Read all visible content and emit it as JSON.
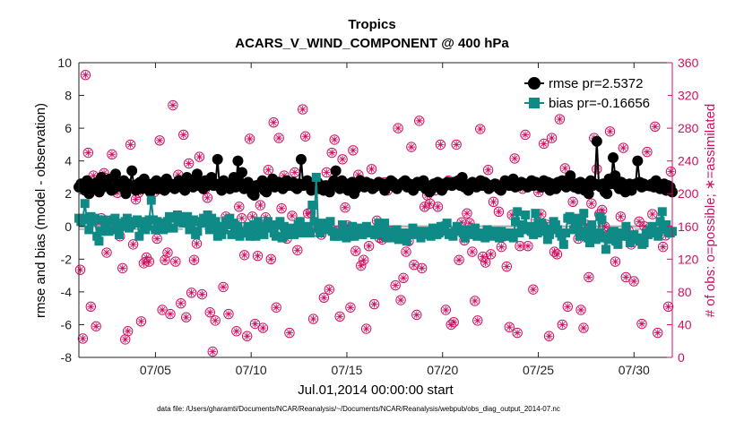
{
  "chart_data": {
    "type": "line",
    "title": "Tropics",
    "subtitle": "ACARS_V_WIND_COMPONENT @ 400 hPa",
    "xlabel": "Jul.01,2014 00:00:00 start",
    "ylabel": "rmse and bias (model - observation)",
    "y2label": "# of obs: o=possible; ∗=assimilated",
    "footnote": "data file: /Users/gharamti/Documents/NCAR/Reanalysis/~/Documents/NCAR/Reanalysis/webpub/obs_diag_output_2014-07.nc",
    "xlim": [
      1.0,
      32.0
    ],
    "ylim": [
      -8,
      10
    ],
    "y2lim": [
      0,
      360
    ],
    "xticks": [
      5,
      10,
      15,
      20,
      25,
      30
    ],
    "xticklabels": [
      "07/05",
      "07/10",
      "07/15",
      "07/20",
      "07/25",
      "07/30"
    ],
    "yticks": [
      -8,
      -6,
      -4,
      -2,
      0,
      2,
      4,
      6,
      8,
      10
    ],
    "y2ticks": [
      0,
      40,
      80,
      120,
      160,
      200,
      240,
      280,
      320,
      360
    ],
    "zero_line": 0,
    "mean_bias_line": -0.16656,
    "legend_position": "top-right",
    "colors": {
      "rmse": "#000000",
      "bias": "#0f8a86",
      "obs": "#d01060",
      "zero": "#b4b4b4"
    },
    "series": [
      {
        "name": "rmse pr=2.5372",
        "marker": "circle",
        "values": [
          2.4,
          2.6,
          2.5,
          2.2,
          2.8,
          2.0,
          2.6,
          2.5,
          2.3,
          2.7,
          2.1,
          3.0,
          2.4,
          2.6,
          2.5,
          2.9,
          2.2,
          2.3,
          3.2,
          2.5,
          2.6,
          2.4,
          2.8,
          2.0,
          2.6,
          2.4,
          3.4,
          2.5,
          2.2,
          2.6,
          2.7,
          2.3,
          2.9,
          2.5,
          2.4,
          2.1,
          2.6,
          2.5,
          2.8,
          2.3,
          2.5,
          2.7,
          2.2,
          2.9,
          2.4,
          2.6,
          2.5,
          2.3,
          2.6,
          2.8,
          2.4,
          2.7,
          2.2,
          3.0,
          2.5,
          2.6,
          2.4,
          2.9,
          3.2,
          2.5,
          2.6,
          2.3,
          2.8,
          2.5,
          2.6,
          3.0,
          2.5,
          2.6,
          4.1,
          2.4,
          2.2,
          2.8,
          2.6,
          2.5,
          2.3,
          2.5,
          3.0,
          2.4,
          4.0,
          2.6,
          3.3,
          2.3,
          2.4,
          2.7,
          2.3,
          2.0,
          1.9,
          2.5,
          2.4,
          2.6,
          2.8,
          2.2,
          2.1,
          2.5,
          2.7,
          2.9,
          2.4,
          2.5,
          2.7,
          2.6,
          2.3,
          2.5,
          2.8,
          2.5,
          2.6,
          2.7,
          2.4,
          2.3,
          2.6,
          4.1,
          2.5,
          2.6,
          2.8,
          2.5,
          2.2,
          2.4,
          2.6,
          2.7,
          2.3,
          2.5,
          2.2,
          2.5,
          2.4,
          2.1,
          2.6,
          2.8,
          3.4,
          2.5,
          2.3,
          2.8,
          2.4,
          2.6,
          2.2,
          2.5,
          2.7,
          2.0,
          2.3,
          2.5,
          2.8,
          2.6,
          2.4,
          2.7,
          2.5,
          2.6,
          2.3,
          2.4,
          2.5,
          2.7,
          2.5,
          2.6,
          2.2,
          2.6,
          2.5,
          2.8,
          2.7,
          2.4,
          2.3,
          2.5,
          2.6,
          2.7,
          2.8,
          2.4,
          2.6,
          2.5,
          2.2,
          2.6,
          2.7,
          2.5,
          2.6,
          2.8,
          2.3,
          2.5,
          2.1,
          2.3,
          2.6,
          2.5,
          2.7,
          2.4,
          2.2,
          2.6,
          2.5,
          2.7,
          2.6,
          2.5,
          2.7,
          2.6,
          2.8,
          2.5,
          3.0,
          2.4,
          2.5,
          2.2,
          2.6,
          2.7,
          2.5,
          2.4,
          2.6,
          2.8,
          2.5,
          2.7,
          2.6,
          2.3,
          2.4,
          2.5,
          2.6,
          2.5,
          2.3,
          2.2,
          2.5,
          2.8,
          2.6,
          2.5,
          2.7,
          2.9,
          2.4,
          2.6,
          2.5,
          2.7,
          2.6,
          2.6,
          2.4,
          2.5,
          2.8,
          2.5,
          2.7,
          2.6,
          2.5,
          2.4,
          2.8,
          2.5,
          2.7,
          2.2,
          2.6,
          2.5,
          2.3,
          2.7,
          2.6,
          2.8,
          2.5,
          2.4,
          2.7,
          3.1,
          2.5,
          2.4,
          2.6,
          2.3,
          2.7,
          2.5,
          2.2,
          2.6,
          2.0,
          2.8,
          2.5,
          2.6,
          5.2,
          2.5,
          2.4,
          2.6,
          2.1,
          2.0,
          2.9,
          2.6,
          4.2,
          3.1,
          2.5,
          2.3,
          2.7,
          2.6,
          2.1,
          2.5,
          2.6,
          2.2,
          2.5,
          2.6,
          4.0,
          2.7,
          2.4,
          2.6,
          2.5,
          2.5,
          2.5,
          2.6,
          2.4,
          2.8,
          2.4,
          2.3,
          2.5,
          2.6,
          2.2,
          2.5,
          2.4,
          2.1
        ]
      },
      {
        "name": "bias pr=-0.16656",
        "marker": "square",
        "values": [
          0.5,
          0.3,
          0.5,
          1.4,
          0.4,
          -0.2,
          0.6,
          0.3,
          0.5,
          -0.6,
          -0.9,
          -0.3,
          0.4,
          0.0,
          -0.1,
          -0.3,
          0.3,
          0.4,
          0.5,
          -0.2,
          -0.5,
          0.0,
          0.2,
          0.3,
          0.5,
          -0.1,
          0.1,
          0.3,
          0.2,
          0.4,
          -0.6,
          0.3,
          0.2,
          -0.2,
          0.0,
          0.4,
          1.6,
          0.4,
          -0.2,
          0.3,
          0.2,
          0.1,
          -0.2,
          -0.1,
          0.3,
          0.6,
          -0.1,
          -0.1,
          0.5,
          0.7,
          0.3,
          0.6,
          0.2,
          0.4,
          0.6,
          -0.2,
          0.3,
          0.4,
          -0.5,
          -0.3,
          0.3,
          0.2,
          0.5,
          0.3,
          0.7,
          -0.2,
          0.5,
          -0.1,
          0.3,
          -0.6,
          0.0,
          -0.5,
          -0.2,
          0.3,
          0.1,
          0.5,
          -0.5,
          0.2,
          -0.4,
          0.0,
          -0.6,
          -0.3,
          -0.4,
          -0.4,
          0.0,
          -0.6,
          -0.5,
          0.1,
          -0.6,
          0.3,
          0.0,
          -0.3,
          -0.5,
          -0.1,
          0.3,
          0.1,
          -0.1,
          -0.4,
          -0.6,
          0.1,
          0.3,
          -0.7,
          0.0,
          -0.4,
          -0.5,
          -0.3,
          -0.1,
          -0.5,
          -0.2,
          0.1,
          0.3,
          -0.4,
          -0.2,
          -0.3,
          0.0,
          -0.4,
          1.3,
          0.3,
          3.0,
          -0.1,
          -0.4,
          0.2,
          -0.2,
          0.1,
          0.1,
          0.3,
          -0.3,
          -0.6,
          -0.6,
          -0.4,
          -0.6,
          0.1,
          -0.3,
          -0.7,
          -0.5,
          -0.6,
          0.0,
          -0.6,
          -0.4,
          -0.3,
          -0.1,
          -0.5,
          -0.2,
          0.0,
          -0.4,
          -0.3,
          -0.2,
          -0.5,
          -0.4,
          0.2,
          -0.1,
          -0.4,
          0.2,
          -0.7,
          -0.3,
          -0.7,
          -0.5,
          -0.4,
          -0.2,
          -0.8,
          -0.5,
          -0.4,
          -0.6,
          -0.9,
          -0.4,
          -0.5,
          -0.1,
          -0.4,
          -0.3,
          -0.5,
          -0.7,
          -0.4,
          -0.3,
          -0.5,
          -0.4,
          -0.6,
          -0.1,
          -0.3,
          -0.5,
          -0.4,
          0.0,
          -0.2,
          -0.3,
          0.2,
          -0.5,
          -0.4,
          -0.6,
          -0.3,
          0.0,
          -0.2,
          -0.2,
          -0.4,
          -0.7,
          -0.2,
          -0.5,
          -0.3,
          -0.3,
          -0.1,
          -0.6,
          -0.4,
          -0.5,
          -0.6,
          -0.7,
          -0.2,
          -0.3,
          -0.4,
          -0.6,
          -0.3,
          -0.4,
          -0.7,
          -0.3,
          -0.5,
          -0.4,
          -0.6,
          -0.4,
          -0.6,
          -0.7,
          0.3,
          0.9,
          -0.4,
          0.1,
          -0.2,
          0.7,
          -0.1,
          0.0,
          -0.3,
          -0.5,
          0.8,
          -0.4,
          0.1,
          0.2,
          0.0,
          -0.3,
          -0.8,
          -0.5,
          -0.2,
          0.3,
          0.1,
          -0.2,
          -0.4,
          -0.6,
          -1.1,
          -0.4,
          0.5,
          0.6,
          0.4,
          -0.2,
          0.1,
          0.5,
          -0.6,
          0.3,
          0.8,
          -0.3,
          -0.7,
          -1.0,
          0.1,
          -0.5,
          -0.8,
          -0.4,
          0.6,
          0.4,
          -0.7,
          -1.4,
          -0.6,
          -0.8,
          -0.4,
          -0.3,
          -0.9,
          -1.1,
          -0.4,
          -0.6,
          -0.5,
          0.0,
          -0.6,
          -1.0,
          -0.6,
          -0.5,
          -0.8,
          -0.7,
          -0.9,
          -1.1,
          -1.0,
          -0.4,
          -0.5,
          -0.2,
          0.0,
          -0.4,
          -0.3,
          -0.6,
          0.3,
          0.9,
          -0.2,
          0.1,
          -0.3,
          -0.4,
          -0.3
        ]
      }
    ],
    "obs_counts": [
      107,
      23,
      345,
      250,
      62,
      222,
      38,
      164,
      170,
      225,
      128,
      167,
      248,
      157,
      201,
      148,
      109,
      22,
      32,
      260,
      138,
      193,
      201,
      44,
      115,
      122,
      117,
      166,
      202,
      145,
      265,
      58,
      119,
      128,
      53,
      308,
      117,
      223,
      66,
      272,
      49,
      237,
      79,
      119,
      139,
      245,
      77,
      205,
      195,
      55,
      7,
      45,
      159,
      154,
      86,
      172,
      53,
      209,
      208,
      32,
      184,
      170,
      125,
      26,
      267,
      172,
      41,
      124,
      186,
      36,
      171,
      229,
      120,
      287,
      61,
      268,
      182,
      222,
      145,
      30,
      173,
      226,
      131,
      211,
      303,
      270,
      176,
      177,
      47,
      154,
      159,
      150,
      73,
      226,
      83,
      250,
      266,
      155,
      50,
      242,
      183,
      161,
      61,
      253,
      130,
      223,
      112,
      119,
      35,
      136,
      230,
      65,
      167,
      146,
      144,
      214,
      204,
      155,
      211,
      88,
      280,
      70,
      97,
      129,
      142,
      257,
      113,
      52,
      289,
      109,
      184,
      198,
      188,
      206,
      204,
      184,
      260,
      160,
      58,
      216,
      40,
      43,
      260,
      119,
      165,
      143,
      176,
      164,
      129,
      69,
      45,
      279,
      123,
      116,
      229,
      126,
      190,
      212,
      178,
      135,
      148,
      111,
      37,
      174,
      243,
      30,
      136,
      206,
      272,
      136,
      154,
      83,
      168,
      202,
      175,
      261,
      162,
      26,
      268,
      129,
      126,
      291,
      40,
      231,
      62,
      219,
      190,
      164,
      145,
      58,
      36,
      162,
      98,
      188,
      268,
      230,
      175,
      180,
      160,
      153,
      276,
      218,
      117,
      313,
      172,
      256,
      98,
      155,
      138,
      93,
      308,
      166,
      41,
      160,
      251,
      209,
      175,
      282,
      30,
      211,
      135,
      149,
      62,
      227
    ]
  }
}
